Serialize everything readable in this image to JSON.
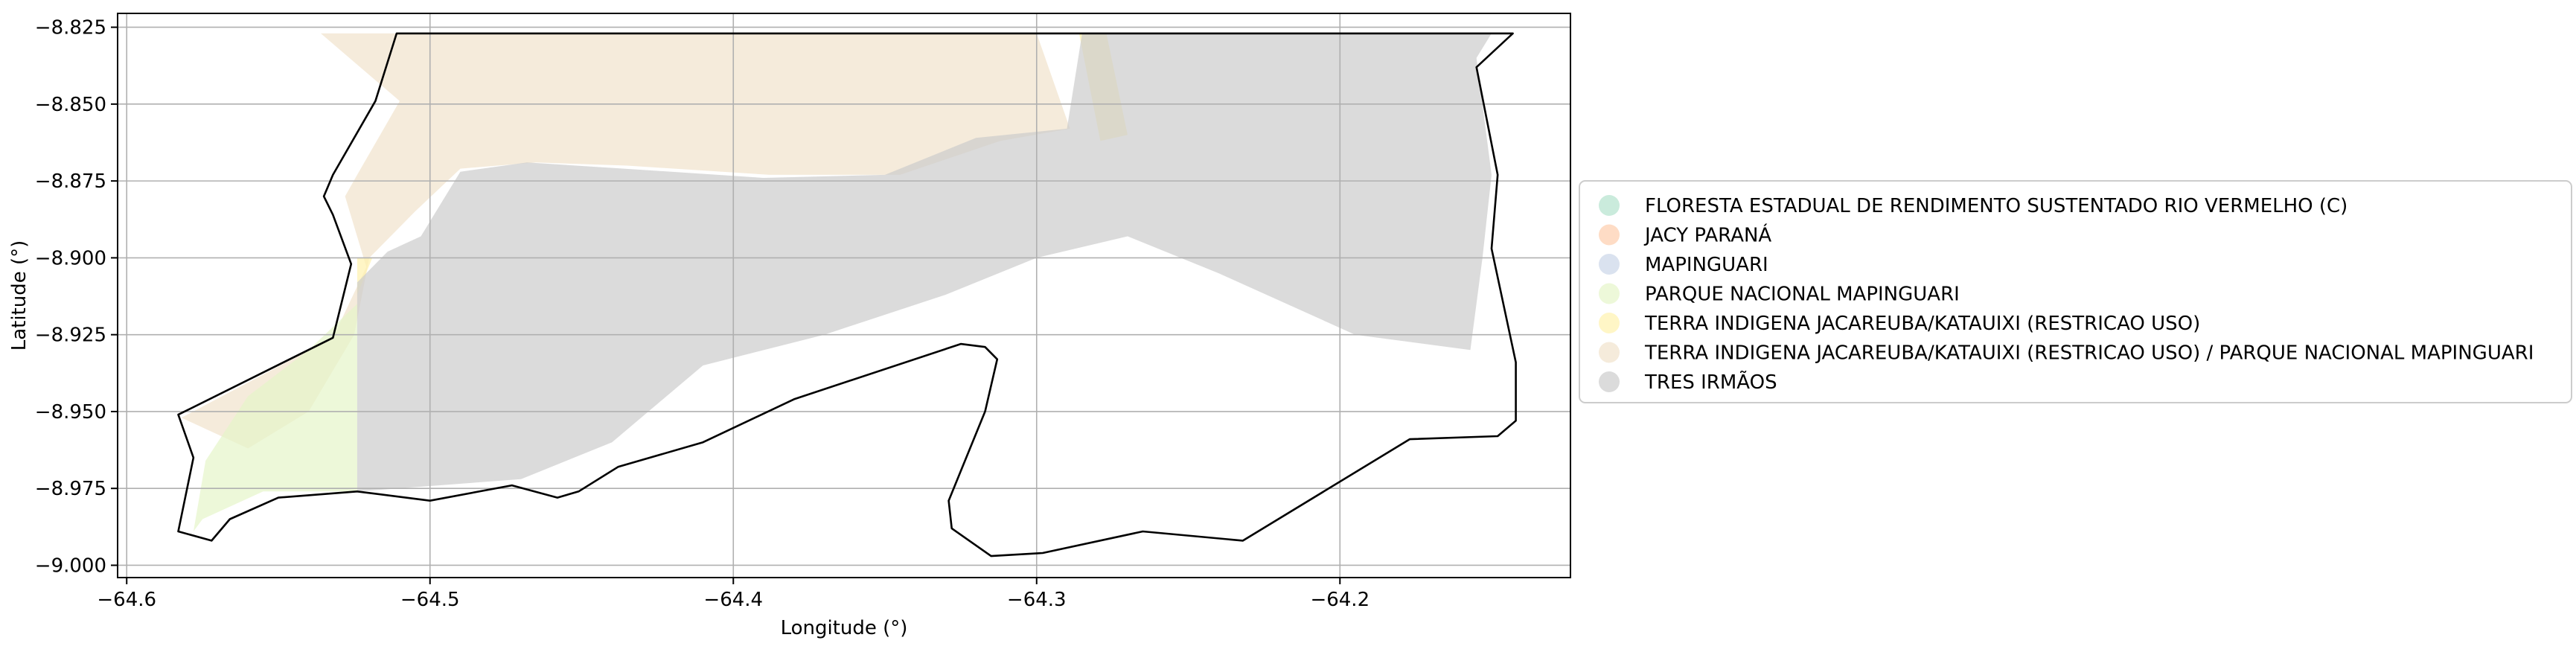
{
  "map": {
    "x_axis": {
      "label": "Longitude (°)",
      "range": [
        -64.603,
        -64.124
      ],
      "ticks": [
        {
          "value": -64.6,
          "label": "−64.6"
        },
        {
          "value": -64.5,
          "label": "−64.5"
        },
        {
          "value": -64.4,
          "label": "−64.4"
        },
        {
          "value": -64.3,
          "label": "−64.3"
        },
        {
          "value": -64.2,
          "label": "−64.2"
        }
      ]
    },
    "y_axis": {
      "label": "Latitude (°)",
      "range": [
        -9.004,
        -8.8205
      ],
      "ticks": [
        {
          "value": -8.825,
          "label": "−8.825"
        },
        {
          "value": -8.85,
          "label": "−8.850"
        },
        {
          "value": -8.875,
          "label": "−8.875"
        },
        {
          "value": -8.9,
          "label": "−8.900"
        },
        {
          "value": -8.925,
          "label": "−8.925"
        },
        {
          "value": -8.95,
          "label": "−8.950"
        },
        {
          "value": -8.975,
          "label": "−8.975"
        },
        {
          "value": -9.0,
          "label": "−9.000"
        }
      ]
    },
    "grid": true,
    "legend": {
      "placement": "right-outside",
      "entries": [
        {
          "label": "FLORESTA ESTADUAL DE RENDIMENTO SUSTENTADO RIO VERMELHO (C)",
          "color": "#b3e2cd"
        },
        {
          "label": "JACY PARANÁ",
          "color": "#fdcdac"
        },
        {
          "label": "MAPINGUARI",
          "color": "#cbd5e8"
        },
        {
          "label": "PARQUE NACIONAL MAPINGUARI",
          "color": "#e6f5c9"
        },
        {
          "label": "TERRA INDIGENA JACAREUBA/KATAUIXI (RESTRICAO USO)",
          "color": "#fff2ae"
        },
        {
          "label": "TERRA INDIGENA JACAREUBA/KATAUIXI (RESTRICAO USO) / PARQUE NACIONAL MAPINGUARI",
          "color": "#f1e2cc"
        },
        {
          "label": "TRES IRMÃOS",
          "color": "#cccccc"
        }
      ]
    },
    "colors": {
      "outline": "#000000",
      "grid": "#b0b0b0",
      "frame": "#000000"
    },
    "layers": [
      {
        "name": "terra-indigena-parque-mapinguari",
        "color": "#f1e2cc",
        "coords": [
          [
            -64.536,
            -8.827
          ],
          [
            -64.3,
            -8.827
          ],
          [
            -64.289,
            -8.858
          ],
          [
            -64.312,
            -8.862
          ],
          [
            -64.345,
            -8.873
          ],
          [
            -64.388,
            -8.873
          ],
          [
            -64.435,
            -8.87
          ],
          [
            -64.465,
            -8.869
          ],
          [
            -64.49,
            -8.871
          ],
          [
            -64.505,
            -8.885
          ],
          [
            -64.51,
            -8.89
          ],
          [
            -64.52,
            -8.9
          ],
          [
            -64.525,
            -8.925
          ],
          [
            -64.54,
            -8.95
          ],
          [
            -64.56,
            -8.962
          ],
          [
            -64.582,
            -8.952
          ],
          [
            -64.532,
            -8.926
          ],
          [
            -64.521,
            -8.903
          ],
          [
            -64.528,
            -8.88
          ],
          [
            -64.524,
            -8.873
          ],
          [
            -64.51,
            -8.849
          ]
        ]
      },
      {
        "name": "parque-nacional-mapinguari",
        "color": "#e6f5c9",
        "coords": [
          [
            -64.524,
            -8.915
          ],
          [
            -64.524,
            -8.976
          ],
          [
            -64.555,
            -8.976
          ],
          [
            -64.575,
            -8.985
          ],
          [
            -64.578,
            -8.989
          ],
          [
            -64.574,
            -8.966
          ],
          [
            -64.56,
            -8.945
          ],
          [
            -64.54,
            -8.93
          ]
        ]
      },
      {
        "name": "terra-indigena-jacareuba",
        "color": "#fff2ae",
        "coords": [
          [
            -64.286,
            -8.827
          ],
          [
            -64.277,
            -8.827
          ],
          [
            -64.27,
            -8.86
          ],
          [
            -64.279,
            -8.862
          ]
        ]
      },
      {
        "name": "terra-indigena-jacareuba-strip",
        "color": "#fff2ae",
        "coords": [
          [
            -64.524,
            -8.9
          ],
          [
            -64.519,
            -8.9
          ],
          [
            -64.524,
            -8.912
          ]
        ]
      },
      {
        "name": "tres-irmaos",
        "color": "#cccccc",
        "coords": [
          [
            -64.524,
            -8.908
          ],
          [
            -64.514,
            -8.898
          ],
          [
            -64.503,
            -8.893
          ],
          [
            -64.49,
            -8.872
          ],
          [
            -64.468,
            -8.869
          ],
          [
            -64.436,
            -8.871
          ],
          [
            -64.39,
            -8.874
          ],
          [
            -64.35,
            -8.873
          ],
          [
            -64.32,
            -8.861
          ],
          [
            -64.29,
            -8.858
          ],
          [
            -64.285,
            -8.827
          ],
          [
            -64.15,
            -8.827
          ],
          [
            -64.155,
            -8.835
          ],
          [
            -64.15,
            -8.873
          ],
          [
            -64.153,
            -8.9
          ],
          [
            -64.157,
            -8.93
          ],
          [
            -64.195,
            -8.925
          ],
          [
            -64.24,
            -8.905
          ],
          [
            -64.27,
            -8.893
          ],
          [
            -64.3,
            -8.9
          ],
          [
            -64.33,
            -8.912
          ],
          [
            -64.37,
            -8.925
          ],
          [
            -64.41,
            -8.935
          ],
          [
            -64.44,
            -8.96
          ],
          [
            -64.47,
            -8.972
          ],
          [
            -64.524,
            -8.976
          ]
        ]
      }
    ],
    "outline": [
      [
        -64.511,
        -8.827
      ],
      [
        -64.143,
        -8.827
      ],
      [
        -64.155,
        -8.838
      ],
      [
        -64.148,
        -8.873
      ],
      [
        -64.15,
        -8.897
      ],
      [
        -64.142,
        -8.934
      ],
      [
        -64.142,
        -8.953
      ],
      [
        -64.148,
        -8.958
      ],
      [
        -64.177,
        -8.959
      ],
      [
        -64.232,
        -8.992
      ],
      [
        -64.265,
        -8.989
      ],
      [
        -64.298,
        -8.996
      ],
      [
        -64.315,
        -8.997
      ],
      [
        -64.328,
        -8.988
      ],
      [
        -64.329,
        -8.979
      ],
      [
        -64.317,
        -8.95
      ],
      [
        -64.313,
        -8.933
      ],
      [
        -64.317,
        -8.929
      ],
      [
        -64.325,
        -8.928
      ],
      [
        -64.38,
        -8.946
      ],
      [
        -64.41,
        -8.96
      ],
      [
        -64.438,
        -8.968
      ],
      [
        -64.451,
        -8.976
      ],
      [
        -64.458,
        -8.978
      ],
      [
        -64.473,
        -8.974
      ],
      [
        -64.5,
        -8.979
      ],
      [
        -64.524,
        -8.976
      ],
      [
        -64.55,
        -8.978
      ],
      [
        -64.566,
        -8.985
      ],
      [
        -64.572,
        -8.992
      ],
      [
        -64.583,
        -8.989
      ],
      [
        -64.578,
        -8.965
      ],
      [
        -64.583,
        -8.951
      ],
      [
        -64.532,
        -8.926
      ],
      [
        -64.526,
        -8.902
      ],
      [
        -64.532,
        -8.886
      ],
      [
        -64.535,
        -8.88
      ],
      [
        -64.532,
        -8.873
      ],
      [
        -64.518,
        -8.849
      ]
    ]
  }
}
